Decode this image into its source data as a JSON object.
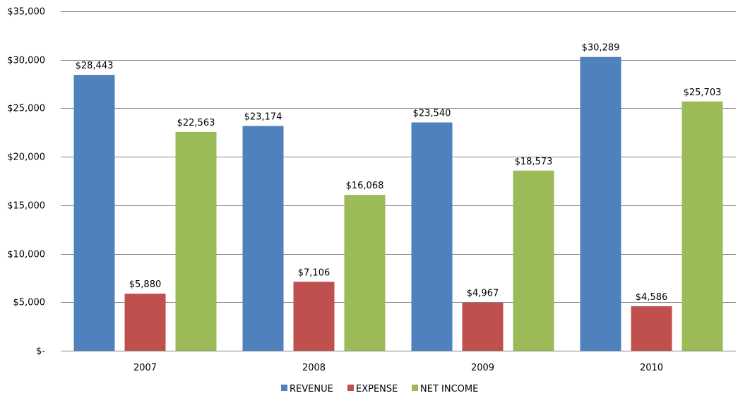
{
  "chart_data": {
    "type": "bar",
    "title": "",
    "xlabel": "",
    "ylabel": "",
    "categories": [
      "2007",
      "2008",
      "2009",
      "2010"
    ],
    "series": [
      {
        "name": "REVENUE",
        "color": "#4F81BD",
        "values": [
          28443,
          23174,
          23540,
          30289
        ],
        "labels": [
          "$28,443",
          "$23,174",
          "$23,540",
          "$30,289"
        ]
      },
      {
        "name": "EXPENSE",
        "color": "#C0504D",
        "values": [
          5880,
          7106,
          4967,
          4586
        ],
        "labels": [
          "$5,880",
          "$7,106",
          "$4,967",
          "$4,586"
        ]
      },
      {
        "name": "NET INCOME",
        "color": "#9BBB59",
        "values": [
          22563,
          16068,
          18573,
          25703
        ],
        "labels": [
          "$22,563",
          "$16,068",
          "$18,573",
          "$25,703"
        ]
      }
    ],
    "ylim": [
      0,
      35000
    ],
    "yticks": [
      0,
      5000,
      10000,
      15000,
      20000,
      25000,
      30000,
      35000
    ],
    "ytick_labels": [
      "$-",
      "$5,000",
      "$10,000",
      "$15,000",
      "$20,000",
      "$25,000",
      "$30,000",
      "$35,000"
    ],
    "grid": true,
    "legend": "bottom"
  }
}
